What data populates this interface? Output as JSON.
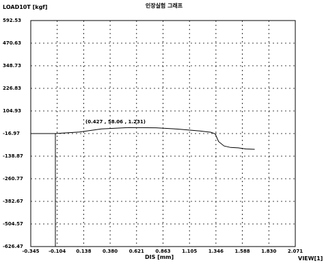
{
  "chart_data": {
    "type": "line",
    "title": "인장실험 그래프",
    "ylabel": "LOAD10T [kgf]",
    "xlabel": "DIS [mm]",
    "corner_label": "VIEW[1]",
    "annotation": "(0.427 , 58.06 , 1.231)",
    "grid": true,
    "xlim": [
      -0.345,
      2.071
    ],
    "ylim": [
      -626.47,
      592.53
    ],
    "x_tick_labels": [
      "-0.345",
      "-0.104",
      "0.138",
      "0.380",
      "0.621",
      "0.863",
      "1.105",
      "1.346",
      "1.588",
      "1.830",
      "2.071"
    ],
    "y_tick_labels": [
      "592.53",
      "470.63",
      "348.73",
      "226.83",
      "104.93",
      "-16.97",
      "-138.87",
      "-260.77",
      "-382.67",
      "-504.57",
      "-626.47"
    ],
    "series": [
      {
        "points": [
          [
            -0.345,
            -16.97
          ],
          [
            -0.12,
            -16.97
          ],
          [
            -0.12,
            -626.47
          ],
          [
            -0.12,
            -16.97
          ],
          [
            0.1,
            -9
          ],
          [
            0.3,
            8
          ],
          [
            0.55,
            15
          ],
          [
            0.8,
            14
          ],
          [
            1.0,
            7
          ],
          [
            1.2,
            -3
          ],
          [
            1.3,
            -10
          ],
          [
            1.34,
            -19
          ],
          [
            1.37,
            -60
          ],
          [
            1.42,
            -84
          ],
          [
            1.48,
            -92
          ],
          [
            1.55,
            -94
          ],
          [
            1.62,
            -100
          ],
          [
            1.7,
            -102
          ]
        ]
      }
    ]
  }
}
